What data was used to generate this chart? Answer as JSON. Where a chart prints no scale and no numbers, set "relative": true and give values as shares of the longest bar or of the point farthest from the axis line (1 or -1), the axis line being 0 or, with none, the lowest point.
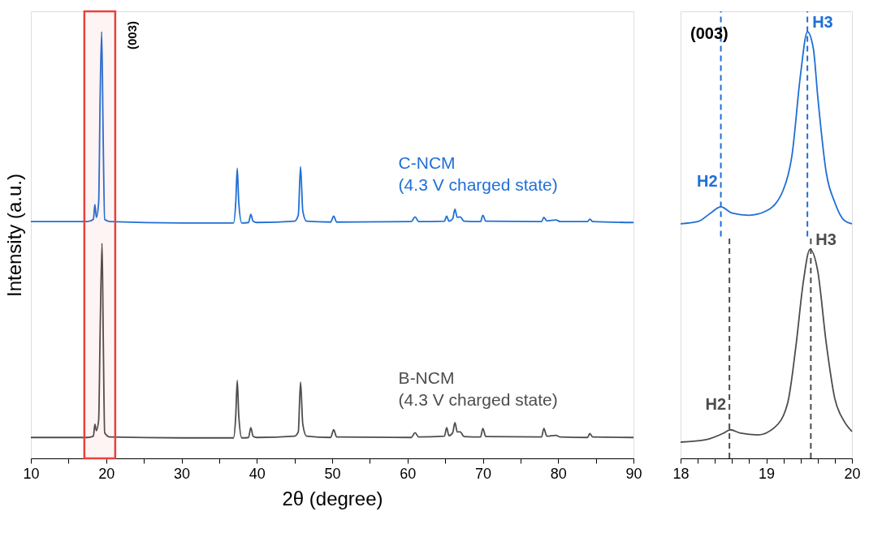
{
  "chart_data": [
    {
      "type": "line",
      "relative": true,
      "xlabel": "2θ (degree)",
      "ylabel": "Intensity (a.u.)",
      "xlim": [
        10,
        90
      ],
      "xticks": [
        10,
        {
          "value": 15,
          "label": null
        },
        20,
        {
          "value": 25,
          "label": null
        },
        30,
        {
          "value": 35,
          "label": null
        },
        40,
        {
          "value": 45,
          "label": null
        },
        50,
        {
          "value": 55,
          "label": null
        },
        60,
        {
          "value": 65,
          "label": null
        },
        70,
        {
          "value": 75,
          "label": null
        },
        80,
        {
          "value": 85,
          "label": null
        },
        90
      ],
      "bands": [
        {
          "axis": "x",
          "from": 17.1,
          "to": 21.2,
          "color": "#e8413c",
          "label": "(003)"
        }
      ],
      "series": [
        {
          "name": "C-NCM\n(4.3 V charged state)",
          "color": "#1f6fd6",
          "x": [
            10,
            17.5,
            18.3,
            18.5,
            18.7,
            19.0,
            19.2,
            19.4,
            19.6,
            19.8,
            20.5,
            30,
            36.9,
            37.2,
            37.4,
            37.6,
            38.0,
            38.9,
            39.2,
            39.5,
            40,
            45,
            45.5,
            45.8,
            46.1,
            46.6,
            49.8,
            50.2,
            50.6,
            60.5,
            61,
            61.5,
            64.9,
            65.2,
            65.5,
            66.0,
            66.3,
            66.6,
            67.0,
            67.5,
            69.7,
            70,
            70.4,
            77.8,
            78.1,
            78.5,
            79.7,
            80.3,
            83.9,
            84.2,
            84.6,
            90
          ],
          "values": [
            0.555,
            0.555,
            0.56,
            0.595,
            0.565,
            0.6,
            0.85,
            1.0,
            0.75,
            0.56,
            0.555,
            0.552,
            0.552,
            0.6,
            0.68,
            0.6,
            0.552,
            0.553,
            0.572,
            0.556,
            0.553,
            0.556,
            0.57,
            0.684,
            0.58,
            0.556,
            0.554,
            0.568,
            0.554,
            0.555,
            0.566,
            0.555,
            0.556,
            0.568,
            0.556,
            0.562,
            0.584,
            0.565,
            0.566,
            0.556,
            0.555,
            0.57,
            0.556,
            0.555,
            0.565,
            0.557,
            0.559,
            0.555,
            0.555,
            0.561,
            0.555,
            0.553
          ]
        },
        {
          "name": "B-NCM\n(4.3 V charged state)",
          "color": "#4d4d4d",
          "x": [
            10,
            17.5,
            18.3,
            18.5,
            18.7,
            19.0,
            19.2,
            19.45,
            19.6,
            19.8,
            20.5,
            30,
            36.9,
            37.2,
            37.4,
            37.6,
            38.0,
            38.9,
            39.2,
            39.5,
            40,
            45,
            45.5,
            45.8,
            46.1,
            46.6,
            49.8,
            50.2,
            50.6,
            60.5,
            61,
            61.5,
            64.9,
            65.2,
            65.5,
            66.0,
            66.3,
            66.6,
            67.0,
            67.5,
            69.7,
            70,
            70.4,
            77.8,
            78.1,
            78.5,
            79.7,
            80.3,
            83.9,
            84.2,
            84.6,
            90
          ],
          "values": [
            0.049,
            0.049,
            0.052,
            0.08,
            0.065,
            0.09,
            0.3,
            0.504,
            0.3,
            0.06,
            0.05,
            0.048,
            0.048,
            0.1,
            0.183,
            0.1,
            0.048,
            0.049,
            0.072,
            0.052,
            0.049,
            0.052,
            0.062,
            0.179,
            0.08,
            0.052,
            0.049,
            0.067,
            0.05,
            0.049,
            0.06,
            0.05,
            0.052,
            0.072,
            0.053,
            0.06,
            0.084,
            0.062,
            0.062,
            0.051,
            0.05,
            0.07,
            0.051,
            0.05,
            0.07,
            0.052,
            0.054,
            0.05,
            0.049,
            0.058,
            0.05,
            0.049
          ]
        }
      ]
    },
    {
      "type": "line",
      "relative": true,
      "xlim": [
        18,
        20
      ],
      "xticks": [
        18,
        {
          "value": 18.2,
          "label": null
        },
        {
          "value": 18.4,
          "label": null
        },
        {
          "value": 18.6,
          "label": null
        },
        {
          "value": 18.8,
          "label": null
        },
        19,
        {
          "value": 19.2,
          "label": null
        },
        {
          "value": 19.4,
          "label": null
        },
        {
          "value": 19.6,
          "label": null
        },
        {
          "value": 19.8,
          "label": null
        },
        20
      ],
      "annotations": [
        "(003)"
      ],
      "ref_lines": [
        {
          "axis": "x",
          "value": 18.47,
          "label": "H2",
          "color": "#1f6fd6",
          "line_style": "dashed"
        },
        {
          "axis": "x",
          "value": 19.48,
          "label": "H3",
          "color": "#1f6fd6",
          "line_style": "dashed"
        },
        {
          "axis": "x",
          "value": 18.57,
          "label": "H2",
          "color": "#4d4d4d",
          "line_style": "dashed"
        },
        {
          "axis": "x",
          "value": 19.52,
          "label": "H3",
          "color": "#4d4d4d",
          "line_style": "dashed"
        }
      ],
      "series": [
        {
          "color": "#1f6fd6",
          "x": [
            18,
            18.2,
            18.35,
            18.47,
            18.6,
            18.8,
            19.0,
            19.2,
            19.3,
            19.4,
            19.48,
            19.55,
            19.6,
            19.7,
            19.8,
            19.9,
            20
          ],
          "values": [
            0.55,
            0.555,
            0.575,
            0.59,
            0.575,
            0.57,
            0.58,
            0.63,
            0.71,
            0.9,
            1.0,
            0.96,
            0.85,
            0.67,
            0.6,
            0.56,
            0.55
          ]
        },
        {
          "color": "#4d4d4d",
          "x": [
            18,
            18.3,
            18.5,
            18.58,
            18.7,
            18.9,
            19.1,
            19.25,
            19.35,
            19.43,
            19.51,
            19.6,
            19.7,
            19.8,
            19.9,
            20
          ],
          "values": [
            0.038,
            0.044,
            0.059,
            0.067,
            0.059,
            0.055,
            0.073,
            0.13,
            0.27,
            0.41,
            0.49,
            0.44,
            0.27,
            0.14,
            0.09,
            0.063
          ]
        }
      ]
    }
  ]
}
